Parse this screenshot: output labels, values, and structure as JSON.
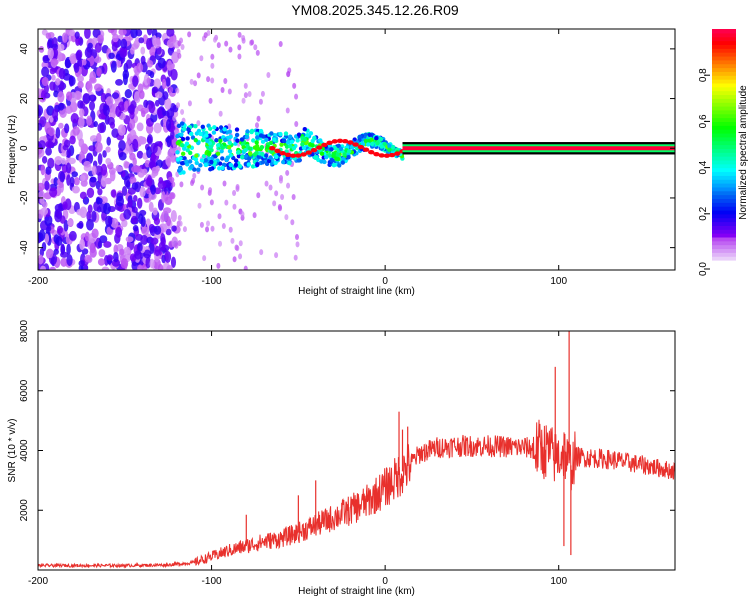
{
  "title": "YM08.2025.345.12.26.R09",
  "chart_data": [
    {
      "type": "heatmap",
      "name": "spectrogram",
      "xlabel": "Height of straight line (km)",
      "ylabel": "Frequency (Hz)",
      "xlim": [
        -200,
        167
      ],
      "ylim": [
        -49,
        48
      ],
      "xticks": [
        "-200",
        "-100",
        "0",
        "100"
      ],
      "yticks": [
        "-40",
        "-20",
        "0",
        "20",
        "40"
      ],
      "carrier_frequency_hz": 0,
      "noise_floor_region_km": [
        -200,
        -120
      ],
      "dispersed_region_km": [
        -120,
        10
      ],
      "stable_carrier_region_km": [
        10,
        167
      ],
      "colorbar": {
        "label": "Normalized spectral amplitude",
        "range": [
          0,
          1
        ],
        "ticks": [
          "0.0",
          "0.2",
          "0.4",
          "0.6",
          "0.8"
        ]
      }
    },
    {
      "type": "line",
      "name": "snr",
      "xlabel": "Height of straight line (km)",
      "ylabel": "SNR (10 * v/v)",
      "xlim": [
        -200,
        167
      ],
      "ylim": [
        0,
        8000
      ],
      "xticks": [
        "-200",
        "-100",
        "0",
        "100"
      ],
      "yticks": [
        "2000",
        "4000",
        "6000",
        "8000"
      ],
      "color": "#e8302c",
      "series": [
        {
          "name": "SNR",
          "x": [
            -200,
            -150,
            -125,
            -110,
            -100,
            -90,
            -80,
            -70,
            -60,
            -50,
            -40,
            -30,
            -20,
            -10,
            0,
            5,
            10,
            15,
            20,
            25,
            30,
            40,
            60,
            80,
            90,
            95,
            98,
            100,
            103,
            105,
            107,
            110,
            130,
            150,
            167
          ],
          "y": [
            150,
            150,
            170,
            250,
            450,
            650,
            800,
            950,
            1050,
            1250,
            1500,
            1750,
            2000,
            2300,
            2750,
            3000,
            3300,
            3600,
            3900,
            4000,
            4100,
            4150,
            4150,
            4100,
            4050,
            3950,
            3750,
            3800,
            4000,
            3650,
            3500,
            3800,
            3700,
            3500,
            3300
          ],
          "spikes": [
            {
              "x": -80,
              "y": 1850
            },
            {
              "x": -50,
              "y": 2500
            },
            {
              "x": -40,
              "y": 3000
            },
            {
              "x": -25,
              "y": 2250
            },
            {
              "x": 8,
              "y": 5300
            },
            {
              "x": 10,
              "y": 4700
            },
            {
              "x": 13,
              "y": 4800
            },
            {
              "x": 98,
              "y": 6800
            },
            {
              "x": 103,
              "y": 800
            },
            {
              "x": 106,
              "y": 8000
            },
            {
              "x": 107,
              "y": 500
            }
          ]
        }
      ]
    }
  ]
}
